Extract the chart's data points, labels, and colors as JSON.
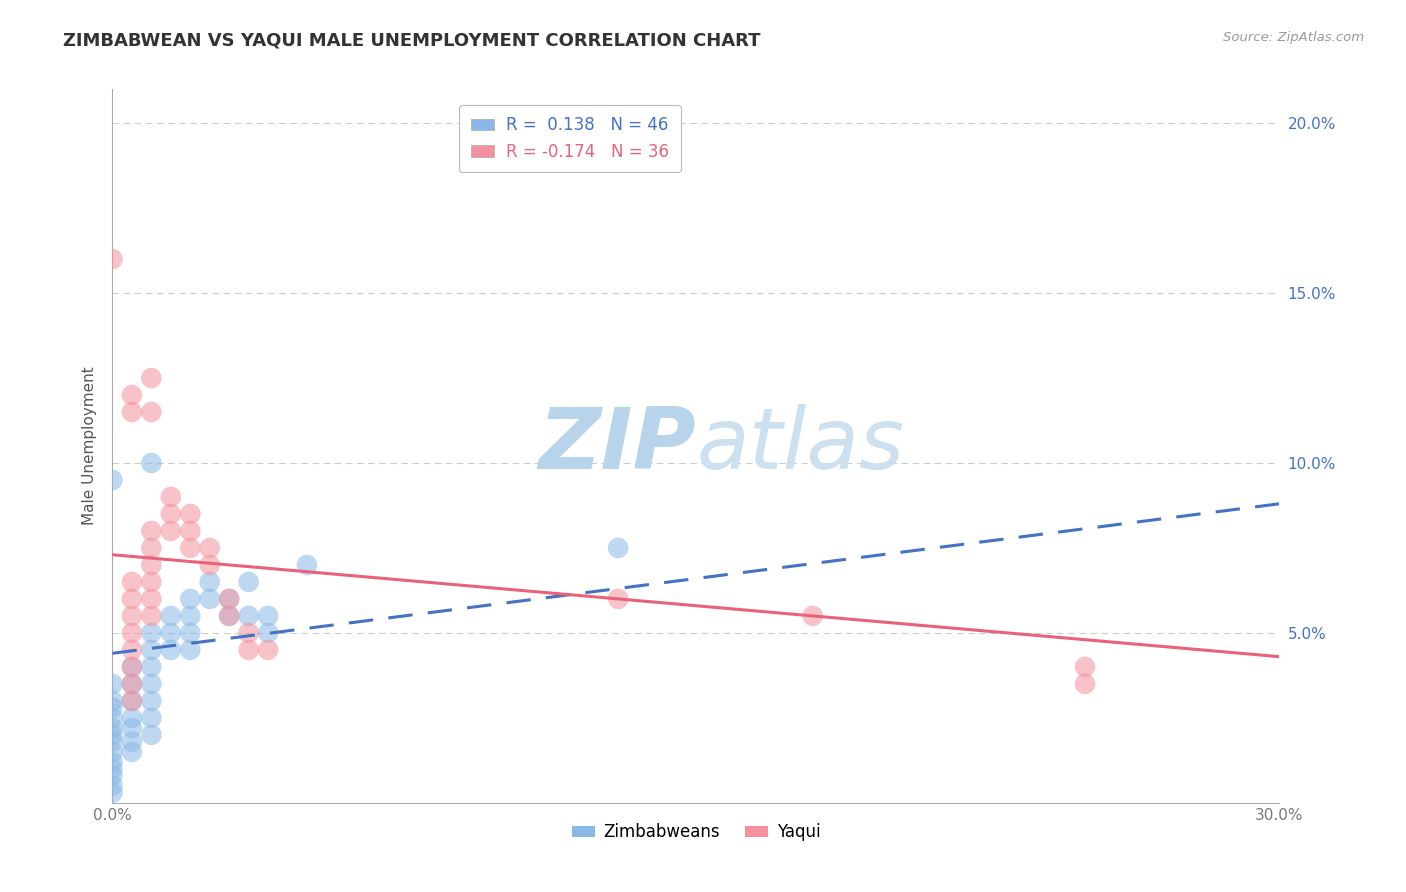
{
  "title": "ZIMBABWEAN VS YAQUI MALE UNEMPLOYMENT CORRELATION CHART",
  "source_text": "Source: ZipAtlas.com",
  "ylabel": "Male Unemployment",
  "xlim": [
    0.0,
    0.3
  ],
  "ylim": [
    0.0,
    0.21
  ],
  "zim_color": "#89b8e8",
  "yaqui_color": "#f4919e",
  "zim_line_color": "#4472c4",
  "yaqui_line_color": "#e8637a",
  "watermark_zip": "ZIP",
  "watermark_atlas": "atlas",
  "watermark_color": "#cde0f0",
  "zim_points": [
    [
      0.0,
      0.035
    ],
    [
      0.0,
      0.03
    ],
    [
      0.0,
      0.028
    ],
    [
      0.0,
      0.025
    ],
    [
      0.0,
      0.022
    ],
    [
      0.0,
      0.02
    ],
    [
      0.0,
      0.018
    ],
    [
      0.0,
      0.015
    ],
    [
      0.0,
      0.012
    ],
    [
      0.0,
      0.01
    ],
    [
      0.0,
      0.008
    ],
    [
      0.0,
      0.005
    ],
    [
      0.0,
      0.003
    ],
    [
      0.005,
      0.04
    ],
    [
      0.005,
      0.035
    ],
    [
      0.005,
      0.03
    ],
    [
      0.005,
      0.025
    ],
    [
      0.005,
      0.022
    ],
    [
      0.005,
      0.018
    ],
    [
      0.005,
      0.015
    ],
    [
      0.01,
      0.05
    ],
    [
      0.01,
      0.045
    ],
    [
      0.01,
      0.04
    ],
    [
      0.01,
      0.035
    ],
    [
      0.01,
      0.03
    ],
    [
      0.01,
      0.025
    ],
    [
      0.01,
      0.02
    ],
    [
      0.015,
      0.055
    ],
    [
      0.015,
      0.05
    ],
    [
      0.015,
      0.045
    ],
    [
      0.02,
      0.06
    ],
    [
      0.02,
      0.055
    ],
    [
      0.02,
      0.05
    ],
    [
      0.02,
      0.045
    ],
    [
      0.025,
      0.065
    ],
    [
      0.025,
      0.06
    ],
    [
      0.03,
      0.06
    ],
    [
      0.03,
      0.055
    ],
    [
      0.035,
      0.065
    ],
    [
      0.035,
      0.055
    ],
    [
      0.04,
      0.055
    ],
    [
      0.04,
      0.05
    ],
    [
      0.05,
      0.07
    ],
    [
      0.13,
      0.075
    ],
    [
      0.0,
      0.095
    ],
    [
      0.01,
      0.1
    ]
  ],
  "yaqui_points": [
    [
      0.0,
      0.16
    ],
    [
      0.005,
      0.12
    ],
    [
      0.005,
      0.115
    ],
    [
      0.01,
      0.125
    ],
    [
      0.01,
      0.115
    ],
    [
      0.01,
      0.08
    ],
    [
      0.01,
      0.075
    ],
    [
      0.01,
      0.07
    ],
    [
      0.005,
      0.065
    ],
    [
      0.005,
      0.06
    ],
    [
      0.005,
      0.055
    ],
    [
      0.005,
      0.05
    ],
    [
      0.005,
      0.045
    ],
    [
      0.005,
      0.04
    ],
    [
      0.005,
      0.035
    ],
    [
      0.005,
      0.03
    ],
    [
      0.01,
      0.065
    ],
    [
      0.01,
      0.06
    ],
    [
      0.01,
      0.055
    ],
    [
      0.015,
      0.09
    ],
    [
      0.015,
      0.085
    ],
    [
      0.015,
      0.08
    ],
    [
      0.02,
      0.085
    ],
    [
      0.02,
      0.08
    ],
    [
      0.02,
      0.075
    ],
    [
      0.025,
      0.075
    ],
    [
      0.025,
      0.07
    ],
    [
      0.03,
      0.06
    ],
    [
      0.03,
      0.055
    ],
    [
      0.035,
      0.05
    ],
    [
      0.035,
      0.045
    ],
    [
      0.04,
      0.045
    ],
    [
      0.13,
      0.06
    ],
    [
      0.18,
      0.055
    ],
    [
      0.25,
      0.04
    ],
    [
      0.25,
      0.035
    ]
  ],
  "zim_trend_x": [
    0.0,
    0.3
  ],
  "zim_trend_y": [
    0.044,
    0.088
  ],
  "yaqui_trend_x": [
    0.0,
    0.3
  ],
  "yaqui_trend_y": [
    0.073,
    0.043
  ]
}
